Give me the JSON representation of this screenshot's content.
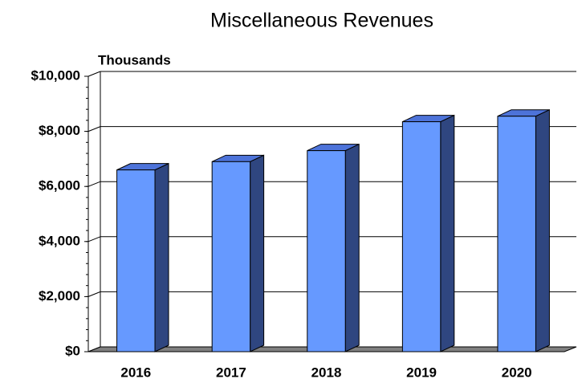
{
  "chart_data": {
    "type": "bar",
    "title": "Miscellaneous Revenues",
    "y_label": "Thousands",
    "categories": [
      "2016",
      "2017",
      "2018",
      "2019",
      "2020"
    ],
    "values": [
      6600,
      6900,
      7300,
      8350,
      8550
    ],
    "color": "#6699ff",
    "ylim": [
      0,
      10000
    ],
    "yticks": [
      {
        "value": 0,
        "label": "$0"
      },
      {
        "value": 2000,
        "label": "$2,000"
      },
      {
        "value": 4000,
        "label": "$4,000"
      },
      {
        "value": 6000,
        "label": "$6,000"
      },
      {
        "value": 8000,
        "label": "$8,000"
      },
      {
        "value": 10000,
        "label": "$10,000"
      }
    ],
    "grid": true
  }
}
